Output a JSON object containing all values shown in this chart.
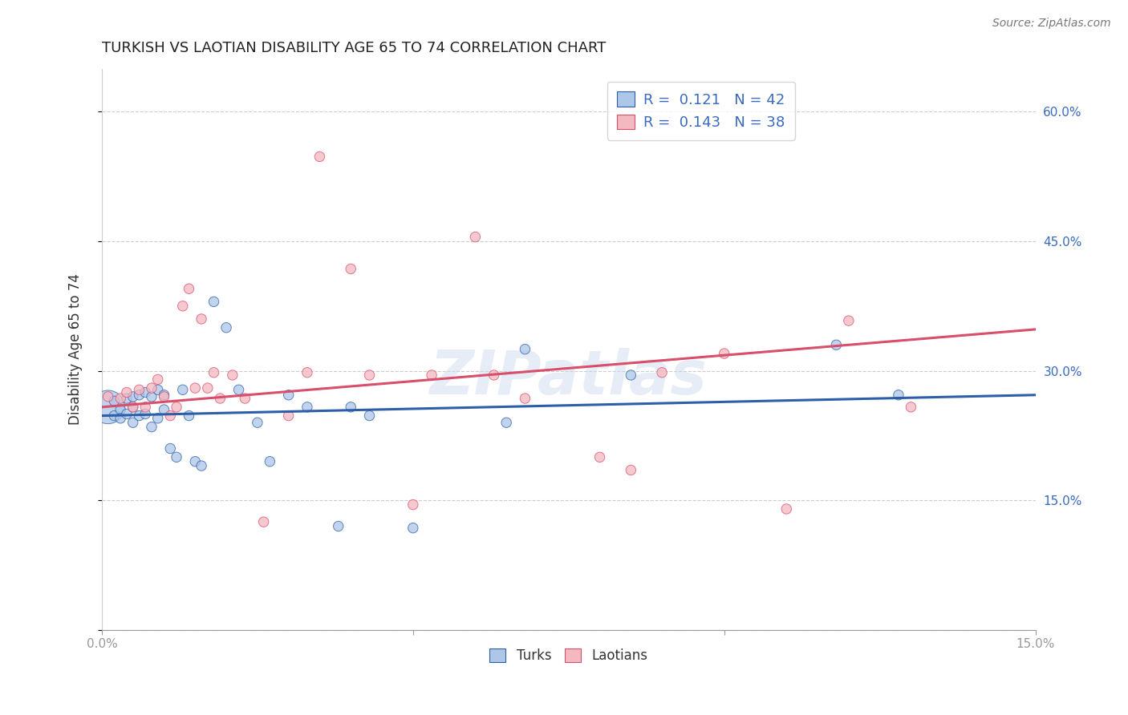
{
  "title": "TURKISH VS LAOTIAN DISABILITY AGE 65 TO 74 CORRELATION CHART",
  "source": "Source: ZipAtlas.com",
  "ylabel": "Disability Age 65 to 74",
  "xlim": [
    0.0,
    0.15
  ],
  "ylim": [
    0.0,
    0.65
  ],
  "xticks": [
    0.0,
    0.05,
    0.1,
    0.15
  ],
  "xticklabels": [
    "0.0%",
    "",
    "",
    "15.0%"
  ],
  "yticks": [
    0.0,
    0.15,
    0.3,
    0.45,
    0.6
  ],
  "yticklabels": [
    "",
    "15.0%",
    "30.0%",
    "45.0%",
    "60.0%"
  ],
  "turks_color": "#aec6e8",
  "laotians_color": "#f4b8c1",
  "turks_line_color": "#2c5fa8",
  "laotians_line_color": "#d94f6b",
  "turks_R": 0.121,
  "turks_N": 42,
  "laotians_R": 0.143,
  "laotians_N": 38,
  "turks_x": [
    0.001,
    0.002,
    0.002,
    0.003,
    0.003,
    0.004,
    0.004,
    0.005,
    0.005,
    0.005,
    0.006,
    0.006,
    0.007,
    0.007,
    0.008,
    0.008,
    0.009,
    0.009,
    0.01,
    0.01,
    0.011,
    0.012,
    0.013,
    0.014,
    0.015,
    0.016,
    0.018,
    0.02,
    0.022,
    0.025,
    0.027,
    0.03,
    0.033,
    0.038,
    0.04,
    0.043,
    0.05,
    0.065,
    0.068,
    0.085,
    0.118,
    0.128
  ],
  "turks_y": [
    0.258,
    0.248,
    0.265,
    0.255,
    0.245,
    0.268,
    0.25,
    0.258,
    0.27,
    0.24,
    0.272,
    0.248,
    0.275,
    0.25,
    0.27,
    0.235,
    0.278,
    0.245,
    0.272,
    0.255,
    0.21,
    0.2,
    0.278,
    0.248,
    0.195,
    0.19,
    0.38,
    0.35,
    0.278,
    0.24,
    0.195,
    0.272,
    0.258,
    0.12,
    0.258,
    0.248,
    0.118,
    0.24,
    0.325,
    0.295,
    0.33,
    0.272
  ],
  "turks_size": [
    900,
    80,
    80,
    80,
    80,
    80,
    80,
    80,
    80,
    80,
    80,
    80,
    80,
    80,
    80,
    80,
    80,
    80,
    80,
    80,
    80,
    80,
    80,
    80,
    80,
    80,
    80,
    80,
    80,
    80,
    80,
    80,
    80,
    80,
    80,
    80,
    80,
    80,
    80,
    80,
    80,
    80
  ],
  "laotians_x": [
    0.001,
    0.003,
    0.004,
    0.005,
    0.006,
    0.007,
    0.008,
    0.009,
    0.01,
    0.011,
    0.012,
    0.013,
    0.014,
    0.015,
    0.016,
    0.017,
    0.018,
    0.019,
    0.021,
    0.023,
    0.026,
    0.03,
    0.033,
    0.035,
    0.04,
    0.043,
    0.05,
    0.053,
    0.06,
    0.063,
    0.068,
    0.08,
    0.085,
    0.09,
    0.1,
    0.11,
    0.12,
    0.13
  ],
  "laotians_y": [
    0.27,
    0.268,
    0.275,
    0.258,
    0.278,
    0.258,
    0.28,
    0.29,
    0.27,
    0.248,
    0.258,
    0.375,
    0.395,
    0.28,
    0.36,
    0.28,
    0.298,
    0.268,
    0.295,
    0.268,
    0.125,
    0.248,
    0.298,
    0.548,
    0.418,
    0.295,
    0.145,
    0.295,
    0.455,
    0.295,
    0.268,
    0.2,
    0.185,
    0.298,
    0.32,
    0.14,
    0.358,
    0.258
  ],
  "laotians_size": [
    80,
    80,
    80,
    80,
    80,
    80,
    80,
    80,
    80,
    80,
    80,
    80,
    80,
    80,
    80,
    80,
    80,
    80,
    80,
    80,
    80,
    80,
    80,
    80,
    80,
    80,
    80,
    80,
    80,
    80,
    80,
    80,
    80,
    80,
    80,
    80,
    80,
    80
  ],
  "watermark": "ZIPatlas",
  "grid_color": "#cccccc",
  "background_color": "#ffffff",
  "title_fontsize": 13,
  "axis_label_fontsize": 12,
  "tick_fontsize": 11,
  "legend_fontsize": 13,
  "right_ytick_color": "#3a6abf",
  "turks_line_x0": 0.0,
  "turks_line_y0": 0.248,
  "turks_line_x1": 0.15,
  "turks_line_y1": 0.272,
  "laotians_line_x0": 0.0,
  "laotians_line_y0": 0.258,
  "laotians_line_x1": 0.15,
  "laotians_line_y1": 0.348
}
